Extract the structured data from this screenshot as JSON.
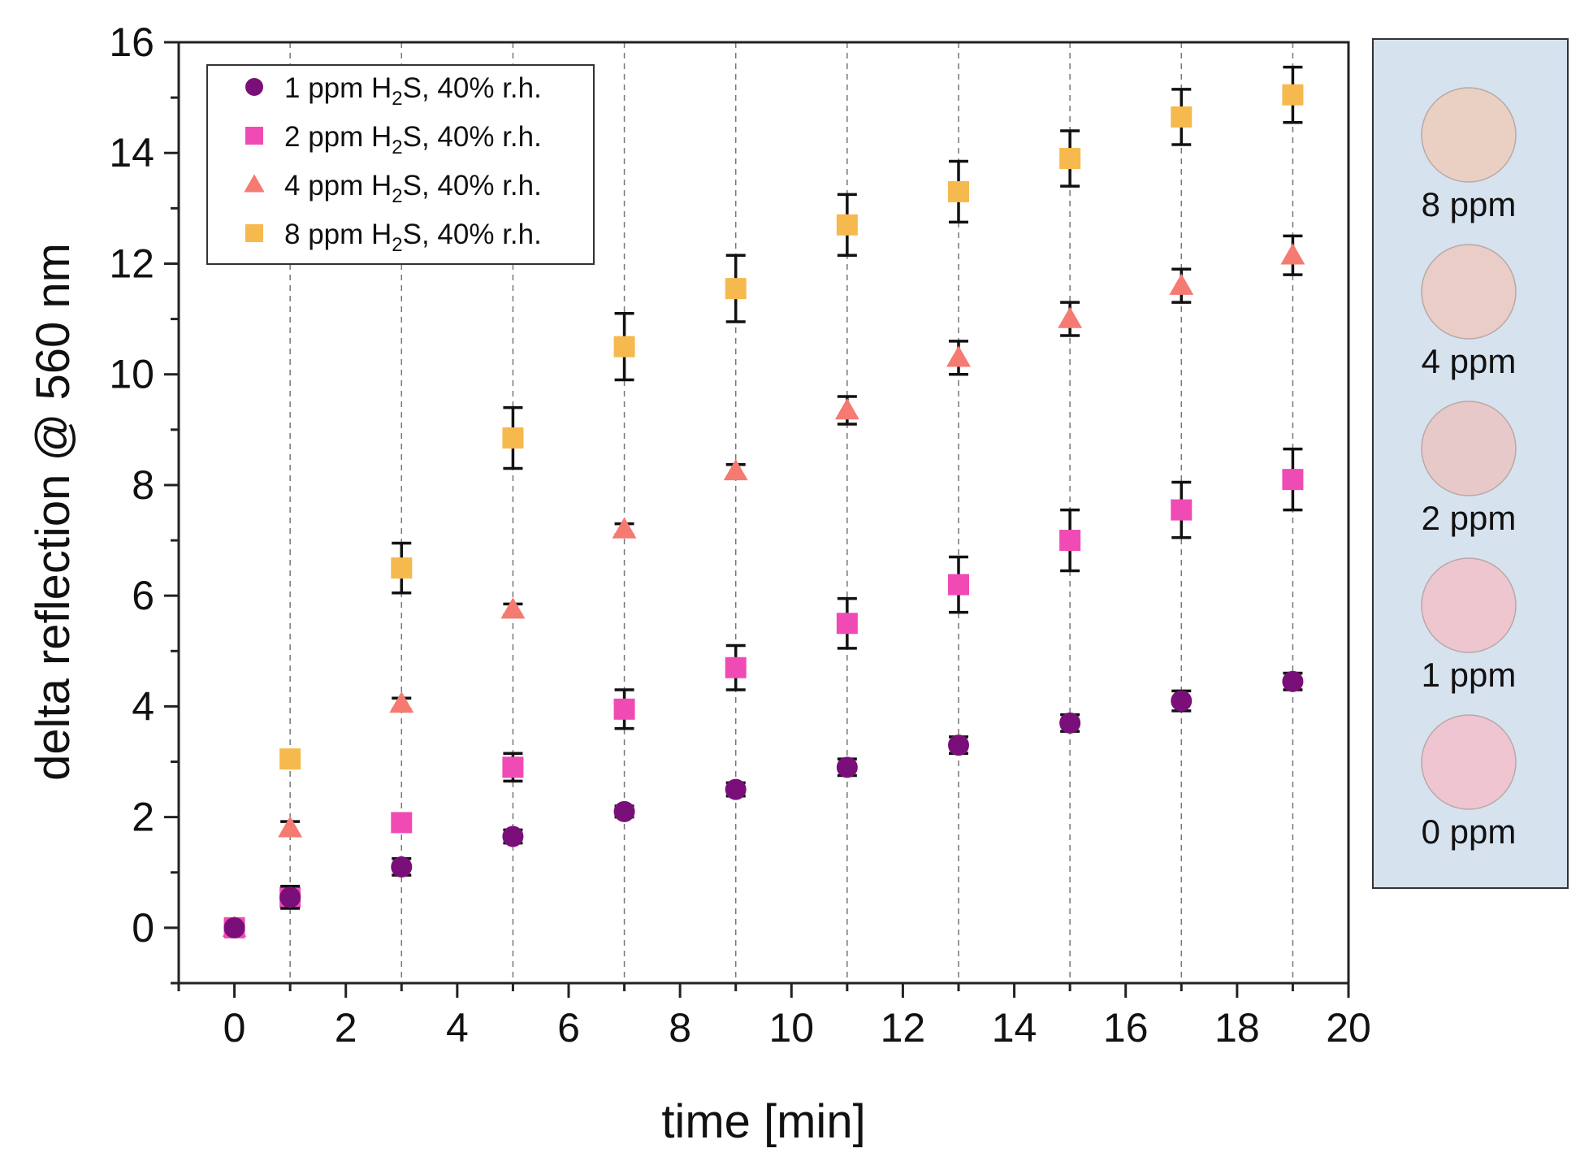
{
  "chart_data": {
    "type": "scatter",
    "title": "",
    "xlabel": "time [min]",
    "ylabel": "delta reflection @ 560 nm",
    "xlim": [
      -1,
      20
    ],
    "ylim": [
      -1,
      16
    ],
    "xticks": [
      0,
      2,
      4,
      6,
      8,
      10,
      12,
      14,
      16,
      18,
      20
    ],
    "yticks": [
      0,
      2,
      4,
      6,
      8,
      10,
      12,
      14,
      16
    ],
    "gridlines_x": [
      1,
      3,
      5,
      7,
      9,
      11,
      13,
      15,
      17,
      19
    ],
    "x": [
      0,
      1,
      3,
      5,
      7,
      9,
      11,
      13,
      15,
      17,
      19
    ],
    "legend_position": "top-left",
    "series": [
      {
        "name": "1 ppm H2S, 40% r.h.",
        "legend": {
          "pre": "1 ppm H",
          "sub": "2",
          "post": "S, 40% r.h."
        },
        "marker": "circle",
        "color": "#7a0f7a",
        "values": [
          0,
          0.55,
          1.1,
          1.65,
          2.1,
          2.5,
          2.9,
          3.3,
          3.7,
          4.1,
          4.45
        ],
        "errors": [
          0,
          0.2,
          0.15,
          0.12,
          0.1,
          0.12,
          0.15,
          0.15,
          0.15,
          0.18,
          0.15
        ]
      },
      {
        "name": "2 ppm H2S, 40% r.h.",
        "legend": {
          "pre": "2 ppm H",
          "sub": "2",
          "post": "S, 40% r.h."
        },
        "marker": "square",
        "color": "#f04bb4",
        "values": [
          0,
          0.55,
          1.9,
          2.9,
          3.95,
          4.7,
          5.5,
          6.2,
          7.0,
          7.55,
          8.1
        ],
        "errors": [
          0,
          0.15,
          0.15,
          0.25,
          0.35,
          0.4,
          0.45,
          0.5,
          0.55,
          0.5,
          0.55
        ]
      },
      {
        "name": "4 ppm H2S, 40% r.h.",
        "legend": {
          "pre": "4 ppm H",
          "sub": "2",
          "post": "S, 40% r.h."
        },
        "marker": "triangle",
        "color": "#f57a72",
        "values": [
          0,
          1.8,
          4.05,
          5.75,
          7.2,
          8.25,
          9.35,
          10.3,
          11.0,
          11.6,
          12.15
        ],
        "errors": [
          0,
          0.12,
          0.1,
          0.1,
          0.1,
          0.12,
          0.25,
          0.3,
          0.3,
          0.3,
          0.35
        ]
      },
      {
        "name": "8 ppm H2S, 40% r.h.",
        "legend": {
          "pre": "8 ppm H",
          "sub": "2",
          "post": "S, 40% r.h."
        },
        "marker": "square",
        "color": "#f5b94e",
        "values": [
          0,
          3.05,
          6.5,
          8.85,
          10.5,
          11.55,
          12.7,
          13.3,
          13.9,
          14.65,
          15.05
        ],
        "errors": [
          0,
          0.1,
          0.45,
          0.55,
          0.6,
          0.6,
          0.55,
          0.55,
          0.5,
          0.5,
          0.5
        ]
      }
    ]
  },
  "samples_panel": {
    "background": "#d7e2ef",
    "samples": [
      {
        "label": "8 ppm",
        "color": "#ead0c3"
      },
      {
        "label": "4 ppm",
        "color": "#e9cdc6"
      },
      {
        "label": "2 ppm",
        "color": "#e8c9c9"
      },
      {
        "label": "1 ppm",
        "color": "#eec6cf"
      },
      {
        "label": "0 ppm",
        "color": "#efc5d2"
      }
    ]
  }
}
